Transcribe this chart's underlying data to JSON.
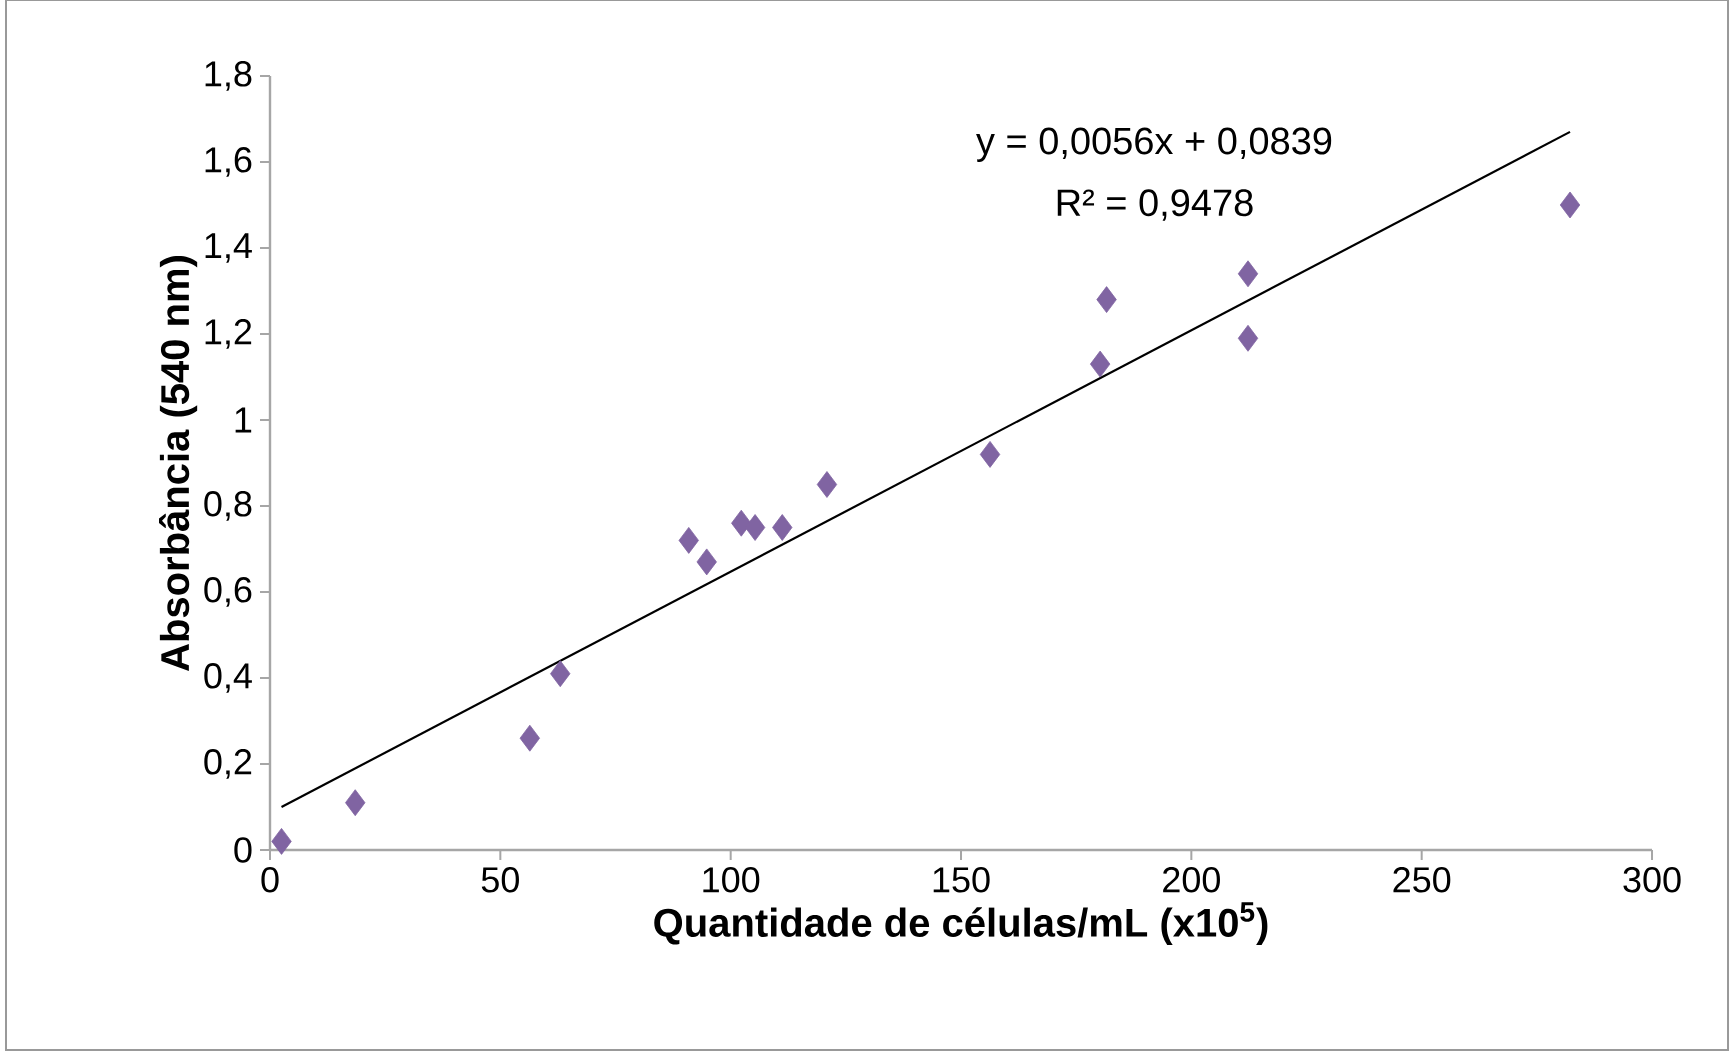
{
  "chart_data": {
    "type": "scatter",
    "xlabel": "Quantidade de células/mL (x10$^{5}$)",
    "ylabel": "Absorbância (540 nm)",
    "series": [
      {
        "color": "#8064a2",
        "marker": "diamond",
        "x": [
          2.5,
          18.5,
          56.4,
          63,
          90.9,
          94.8,
          102.3,
          105.3,
          111.2,
          120.9,
          156.3,
          180.2,
          181.6,
          212.3,
          212.3,
          282.2
        ],
        "values": [
          0.02,
          0.11,
          0.26,
          0.41,
          0.72,
          0.67,
          0.76,
          0.75,
          0.75,
          0.85,
          0.92,
          1.13,
          1.28,
          1.34,
          1.19,
          1.5
        ]
      },
      {
        "type": "line",
        "color": "#000000",
        "marker": "none",
        "x": [
          2.5,
          282.2
        ],
        "values": [
          0.1,
          1.67
        ]
      }
    ],
    "xlim": [
      0,
      300
    ],
    "xticks": [
      0,
      50,
      100,
      150,
      200,
      250,
      300
    ],
    "ylim": [
      0,
      1.8
    ],
    "yticks": [
      0,
      {
        "value": 0.2,
        "label": "0,2"
      },
      {
        "value": 0.4,
        "label": "0,4"
      },
      {
        "value": 0.6,
        "label": "0,6"
      },
      {
        "value": 0.8,
        "label": "0,8"
      },
      1,
      {
        "value": 1.2,
        "label": "1,2"
      },
      {
        "value": 1.4,
        "label": "1,4"
      },
      {
        "value": 1.6,
        "label": "1,6"
      },
      {
        "value": 1.8,
        "label": "1,8"
      }
    ],
    "annotations": [
      "y = 0,0056x + 0,0839",
      "R² = 0,9478"
    ]
  }
}
